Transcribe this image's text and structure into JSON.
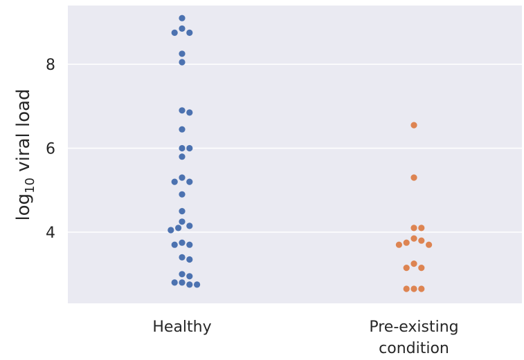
{
  "chart_data": {
    "type": "scatter",
    "style": "swarm",
    "title": "",
    "xlabel": "",
    "ylabel": "log10 viral load",
    "ylabel_parts": {
      "base": "log",
      "subscript": "10",
      "rest": " viral load"
    },
    "ylim": [
      2.2,
      9.3
    ],
    "yticks": [
      4,
      6,
      8
    ],
    "grid": true,
    "background": "#eaeaf2",
    "categories": [
      {
        "label_lines": [
          "Healthy"
        ],
        "color": "#4c72b0"
      },
      {
        "label_lines": [
          "Pre-existing",
          "condition"
        ],
        "color": "#dd8452"
      }
    ],
    "series": [
      {
        "category": 0,
        "values": [
          9.1,
          8.85,
          8.75,
          8.75,
          8.25,
          8.05,
          6.9,
          6.85,
          6.45,
          6.0,
          6.0,
          5.8,
          5.3,
          5.2,
          5.2,
          4.9,
          4.5,
          4.25,
          4.15,
          4.1,
          4.05,
          3.75,
          3.7,
          3.7,
          3.4,
          3.35,
          3.0,
          2.95,
          2.8,
          2.8,
          2.75,
          2.75
        ]
      },
      {
        "category": 1,
        "values": [
          6.55,
          5.3,
          4.1,
          4.1,
          3.85,
          3.8,
          3.75,
          3.7,
          3.7,
          3.25,
          3.15,
          3.15,
          2.65,
          2.65,
          2.65
        ]
      }
    ]
  }
}
